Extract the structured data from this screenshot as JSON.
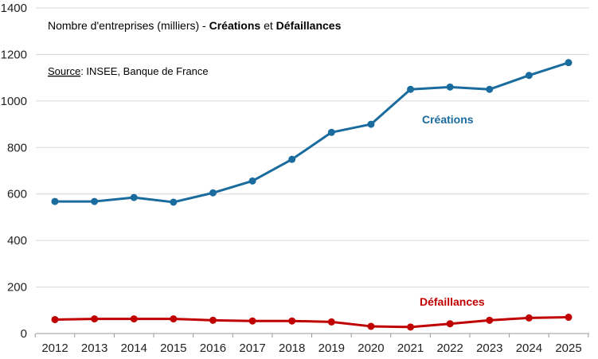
{
  "chart_data": {
    "type": "line",
    "title": {
      "prefix": "Nombre d'entreprises (milliers) - ",
      "series_a": "Créations",
      "joiner": " et ",
      "series_b": "Défaillances"
    },
    "source": {
      "label": "Source",
      "text": ": INSEE, Banque de France"
    },
    "xlabel": "",
    "ylabel": "",
    "ylim": [
      0,
      1400
    ],
    "yticks": [
      "0",
      "200",
      "400",
      "600",
      "800",
      "1000",
      "1200",
      "1400"
    ],
    "categories": [
      "2012",
      "2013",
      "2014",
      "2015",
      "2016",
      "2017",
      "2018",
      "2019",
      "2020",
      "2021",
      "2022",
      "2023",
      "2024",
      "2025"
    ],
    "series": [
      {
        "name": "Créations",
        "color": "#1a6c9e",
        "values": [
          568,
          568,
          585,
          565,
          605,
          656,
          749,
          865,
          900,
          1050,
          1060,
          1050,
          1110,
          1165
        ]
      },
      {
        "name": "Défaillances",
        "color": "#c00000",
        "values": [
          60,
          63,
          63,
          63,
          57,
          54,
          54,
          50,
          31,
          28,
          42,
          57,
          67,
          70
        ]
      }
    ],
    "grid": true
  }
}
